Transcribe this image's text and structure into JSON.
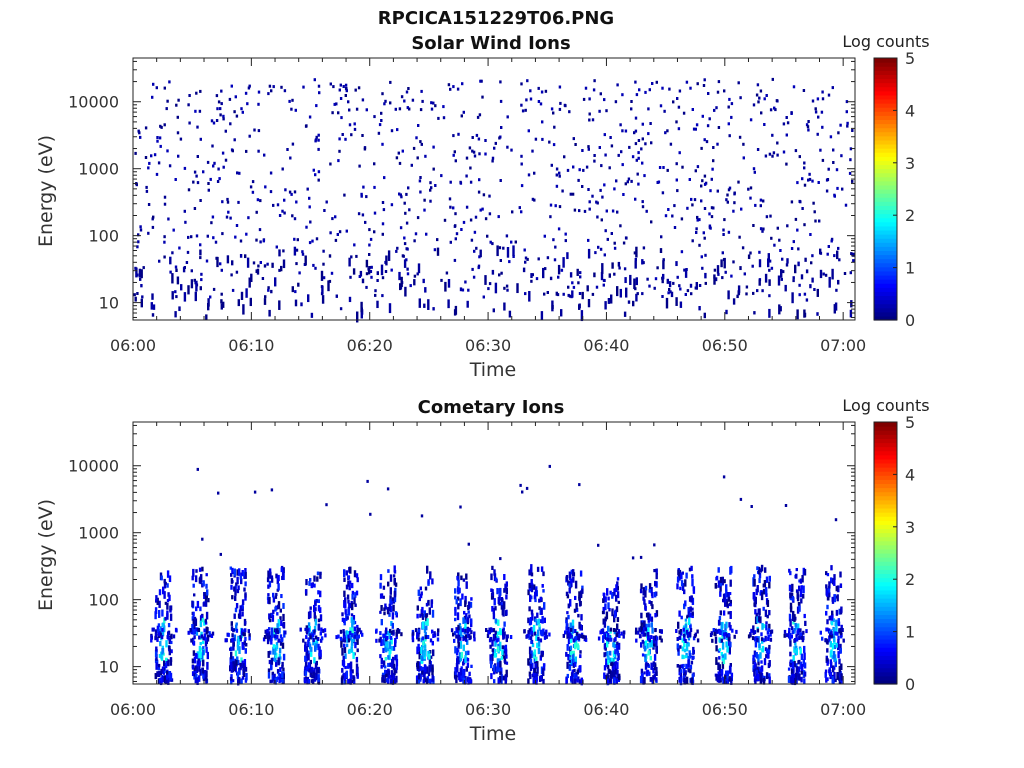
{
  "figure": {
    "title": "RPCICA151229T06.PNG"
  },
  "chart_data": [
    {
      "type": "heatmap",
      "title": "Solar Wind Ions",
      "xlabel": "Time",
      "ylabel": "Energy (eV)",
      "xticks": [
        "06:00",
        "06:10",
        "06:20",
        "06:30",
        "06:40",
        "06:50",
        "07:00"
      ],
      "xlim": [
        "06:00",
        "07:01"
      ],
      "yticks": [
        "10",
        "100",
        "1000",
        "10000"
      ],
      "ylim": [
        5.5,
        45000
      ],
      "yscale": "log",
      "colorbar": {
        "label": "Log counts",
        "ticks": [
          "0",
          "1",
          "2",
          "3",
          "4",
          "5"
        ],
        "range": [
          0,
          5
        ],
        "colormap": "jet"
      },
      "description_pattern": "sparse single-count pixels (log counts ~0-0.3) scattered 10 eV - 30 keV throughout the hour"
    },
    {
      "type": "heatmap",
      "title": "Cometary Ions",
      "xlabel": "Time",
      "ylabel": "Energy (eV)",
      "xticks": [
        "06:00",
        "06:10",
        "06:20",
        "06:30",
        "06:40",
        "06:50",
        "07:00"
      ],
      "xlim": [
        "06:00",
        "07:01"
      ],
      "yticks": [
        "10",
        "100",
        "1000",
        "10000"
      ],
      "ylim": [
        5.5,
        45000
      ],
      "yscale": "log",
      "colorbar": {
        "label": "Log counts",
        "ticks": [
          "0",
          "1",
          "2",
          "3",
          "4",
          "5"
        ],
        "range": [
          0,
          5
        ],
        "colormap": "jet"
      },
      "bursts_minutes": [
        2.5,
        5.6,
        8.8,
        12.0,
        15.1,
        18.2,
        21.5,
        24.6,
        27.8,
        30.8,
        34.0,
        37.2,
        40.3,
        43.5,
        46.6,
        49.8,
        53.0,
        56.0,
        59.1
      ],
      "burst_energy_range_eV": [
        6,
        300
      ],
      "burst_peak_log_counts": 2.0
    }
  ]
}
